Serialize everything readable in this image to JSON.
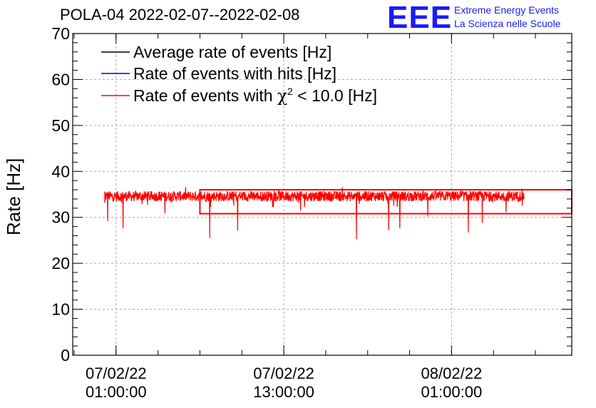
{
  "header": {
    "title": "POLA-04 2022-02-07--2022-02-08",
    "logo_text": "EEE",
    "logo_line1": "Extreme Energy Events",
    "logo_line2": "La Scienza nelle Scuole"
  },
  "colors": {
    "average": "#000000",
    "hits": "#0000cc",
    "chi2": "#ff0000",
    "logo": "#1a1aff"
  },
  "chart_data": {
    "type": "line",
    "title": "POLA-04 2022-02-07--2022-02-08",
    "ylabel": "Rate [Hz]",
    "xlabel": "",
    "ylim": [
      0,
      70
    ],
    "yticks": [
      0,
      10,
      20,
      30,
      40,
      50,
      60,
      70
    ],
    "grid": true,
    "legend_position": "top-left",
    "xticks": [
      {
        "date": "07/02/22",
        "time": "01:00:00",
        "hours": 1
      },
      {
        "date": "07/02/22",
        "time": "13:00:00",
        "hours": 13
      },
      {
        "date": "08/02/22",
        "time": "01:00:00",
        "hours": 25
      }
    ],
    "xlim_hours": [
      -2.1,
      33.6
    ],
    "series": [
      {
        "name": "Average rate of events [Hz]",
        "color": "#000000"
      },
      {
        "name": "Rate of events with hits [Hz]",
        "color": "#0000cc"
      },
      {
        "name": "Rate of events with χ² < 10.0 [Hz]",
        "color": "#ff0000",
        "baseline": 34.6,
        "start_hour": 0.2,
        "end_hour": 30.2,
        "dips": [
          {
            "hour": 0.4,
            "value": 29.2
          },
          {
            "hour": 1.5,
            "value": 27.6
          },
          {
            "hour": 4.5,
            "value": 30.9
          },
          {
            "hour": 7.7,
            "value": 25.5
          },
          {
            "hour": 14.2,
            "value": 31.5
          },
          {
            "hour": 18.2,
            "value": 25.2
          },
          {
            "hour": 9.7,
            "value": 27.1
          },
          {
            "hour": 20.5,
            "value": 27.2
          },
          {
            "hour": 21.3,
            "value": 27.6
          },
          {
            "hour": 23.3,
            "value": 30.2
          },
          {
            "hour": 26.2,
            "value": 26.7
          },
          {
            "hour": 27.2,
            "value": 28.8
          },
          {
            "hour": 28.9,
            "value": 31.1
          }
        ]
      }
    ],
    "rectangle": {
      "hours": [
        7.0,
        33.6
      ],
      "values": [
        30.8,
        36.0
      ]
    }
  }
}
